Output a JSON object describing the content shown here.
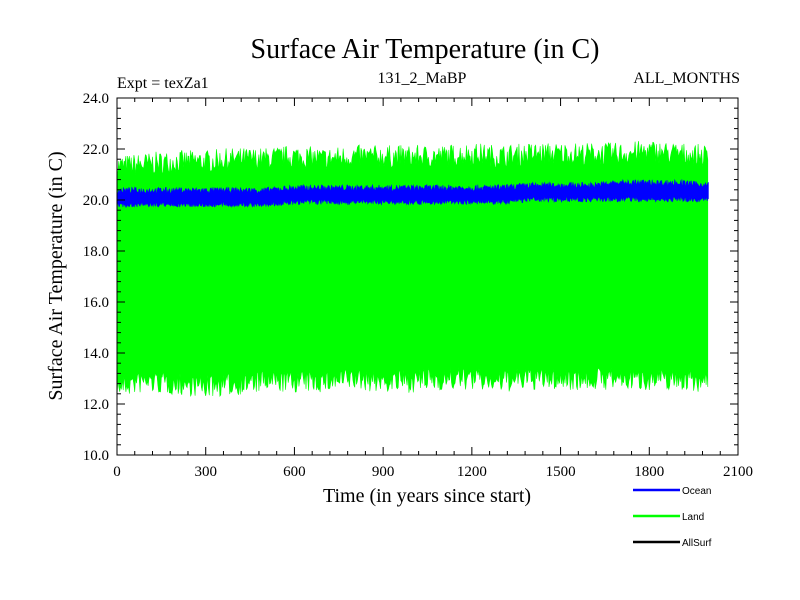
{
  "chart_data": {
    "type": "line",
    "title": "Surface Air Temperature (in C)",
    "subtitle_left": "Expt = texZa1",
    "subtitle_center": "131_2_MaBP",
    "subtitle_right": "ALL_MONTHS",
    "xlabel": "Time (in years since start)",
    "ylabel": "Surface Air Temperature (in C)",
    "xlim": [
      0,
      2100
    ],
    "ylim": [
      10.0,
      24.0
    ],
    "x_ticks": [
      0,
      300,
      600,
      900,
      1200,
      1500,
      1800,
      2100
    ],
    "x_tick_labels": [
      "0",
      "300",
      "600",
      "900",
      "1200",
      "1500",
      "1800",
      "2100"
    ],
    "y_ticks": [
      10.0,
      12.0,
      14.0,
      16.0,
      18.0,
      20.0,
      22.0,
      24.0
    ],
    "y_tick_labels": [
      "10.0",
      "12.0",
      "14.0",
      "16.0",
      "18.0",
      "20.0",
      "22.0",
      "24.0"
    ],
    "legend_position": "below-right",
    "series": [
      {
        "name": "Land",
        "color": "#00ff00",
        "x": [
          0,
          100,
          200,
          300,
          400,
          500,
          600,
          700,
          800,
          900,
          1000,
          1100,
          1200,
          1300,
          1400,
          1500,
          1600,
          1700,
          1800,
          1900,
          2000
        ],
        "max": [
          21.4,
          21.5,
          21.6,
          21.6,
          21.7,
          21.7,
          21.8,
          21.7,
          21.8,
          21.8,
          21.8,
          21.8,
          21.9,
          21.8,
          21.9,
          21.9,
          21.9,
          21.9,
          22.0,
          21.9,
          21.8
        ],
        "min": [
          12.6,
          12.8,
          12.7,
          12.6,
          12.7,
          12.8,
          12.8,
          12.8,
          12.9,
          12.8,
          12.8,
          12.9,
          12.9,
          12.8,
          12.9,
          12.9,
          12.9,
          12.9,
          12.9,
          12.9,
          12.8
        ]
      },
      {
        "name": "Ocean",
        "color": "#0000ff",
        "x": [
          0,
          100,
          200,
          300,
          400,
          500,
          600,
          700,
          800,
          900,
          1000,
          1100,
          1200,
          1300,
          1400,
          1500,
          1600,
          1700,
          1800,
          1900,
          2000
        ],
        "max": [
          20.4,
          20.4,
          20.4,
          20.4,
          20.4,
          20.4,
          20.5,
          20.5,
          20.5,
          20.5,
          20.5,
          20.5,
          20.5,
          20.5,
          20.6,
          20.6,
          20.6,
          20.7,
          20.7,
          20.7,
          20.6
        ],
        "min": [
          19.8,
          19.8,
          19.8,
          19.8,
          19.8,
          19.8,
          19.9,
          19.9,
          19.9,
          19.9,
          19.9,
          19.9,
          19.9,
          19.9,
          20.0,
          20.0,
          20.0,
          20.0,
          20.0,
          20.0,
          20.0
        ]
      },
      {
        "name": "AllSurf",
        "color": "#000000",
        "x": [],
        "max": [],
        "min": []
      }
    ]
  }
}
